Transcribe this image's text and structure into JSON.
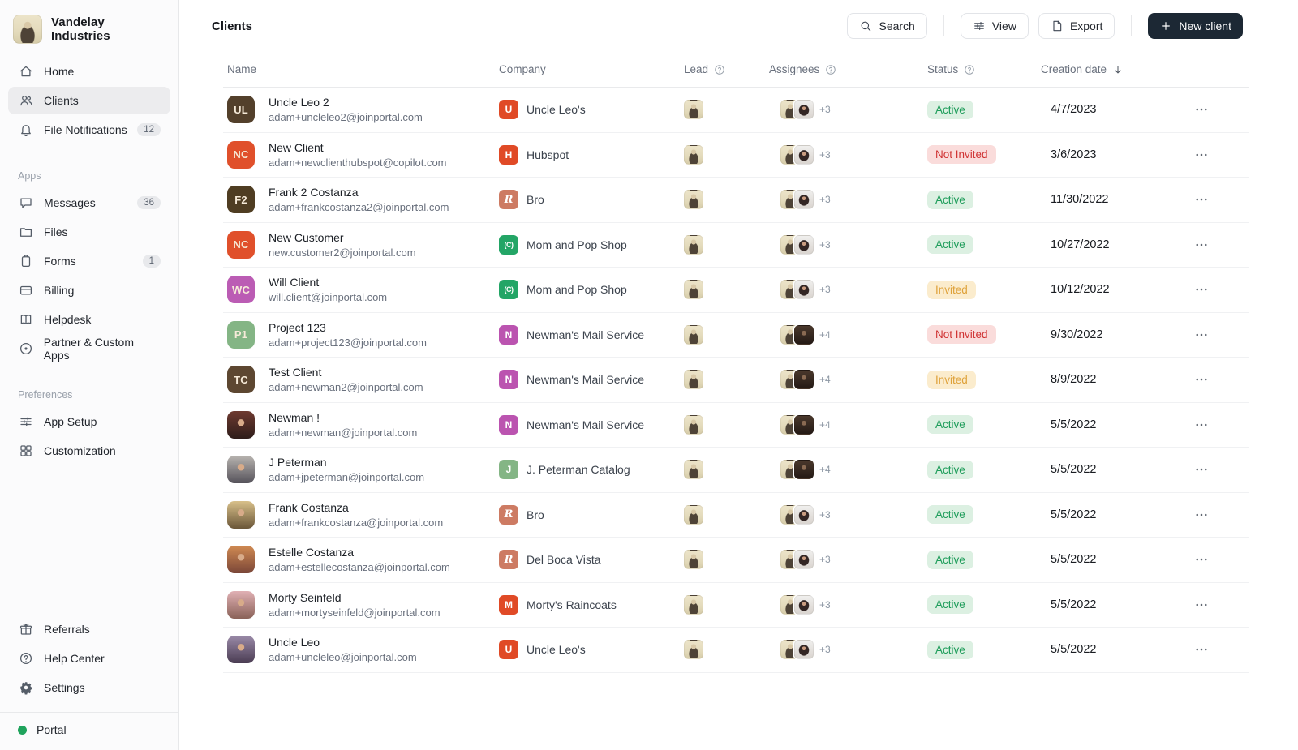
{
  "brand": {
    "name": "Vandelay Industries"
  },
  "sidebar": {
    "sections": [
      {
        "items": [
          {
            "id": "home",
            "icon": "home",
            "label": "Home"
          },
          {
            "id": "clients",
            "icon": "users",
            "label": "Clients",
            "active": true
          },
          {
            "id": "file-notifications",
            "icon": "bell",
            "label": "File Notifications",
            "badge": "12"
          }
        ]
      },
      {
        "label": "Apps",
        "items": [
          {
            "id": "messages",
            "icon": "chat",
            "label": "Messages",
            "badge": "36"
          },
          {
            "id": "files",
            "icon": "folder",
            "label": "Files"
          },
          {
            "id": "forms",
            "icon": "clipboard",
            "label": "Forms",
            "badge": "1"
          },
          {
            "id": "billing",
            "icon": "card",
            "label": "Billing"
          },
          {
            "id": "helpdesk",
            "icon": "book",
            "label": "Helpdesk"
          },
          {
            "id": "partner-custom-apps",
            "icon": "target",
            "label": "Partner & Custom Apps"
          }
        ]
      },
      {
        "label": "Preferences",
        "items": [
          {
            "id": "app-setup",
            "icon": "sliders",
            "label": "App Setup"
          },
          {
            "id": "customization",
            "icon": "grid",
            "label": "Customization"
          }
        ]
      }
    ],
    "footer_items": [
      {
        "id": "referrals",
        "icon": "gift",
        "label": "Referrals"
      },
      {
        "id": "help-center",
        "icon": "help",
        "label": "Help Center"
      },
      {
        "id": "settings",
        "icon": "gear",
        "label": "Settings"
      }
    ],
    "portal": {
      "label": "Portal",
      "dot_color": "#1fa35c"
    }
  },
  "topbar": {
    "title": "Clients",
    "buttons": {
      "search": "Search",
      "view": "View",
      "export": "Export",
      "new_client": "New client"
    }
  },
  "table": {
    "headers": {
      "name": "Name",
      "company": "Company",
      "lead": "Lead",
      "assignees": "Assignees",
      "status": "Status",
      "creation_date": "Creation date"
    },
    "sort": {
      "column": "creation_date",
      "direction": "desc"
    },
    "rows": [
      {
        "name": "Uncle Leo 2",
        "email": "adam+uncleleo2@joinportal.com",
        "avatar": {
          "type": "initials",
          "text": "UL",
          "bg": "#53402b"
        },
        "company": {
          "name": "Uncle Leo's",
          "icon_text": "U",
          "icon_bg": "#e04a26",
          "icon_style": "normal"
        },
        "assignees": {
          "second": "woman",
          "extra": "+3"
        },
        "status": "Active",
        "date": "4/7/2023"
      },
      {
        "name": "New Client",
        "email": "adam+newclienthubspot@copilot.com",
        "avatar": {
          "type": "initials",
          "text": "NC",
          "bg": "#e0502b"
        },
        "company": {
          "name": "Hubspot",
          "icon_text": "H",
          "icon_bg": "#e04a26",
          "icon_style": "normal"
        },
        "assignees": {
          "second": "woman",
          "extra": "+3"
        },
        "status": "Not Invited",
        "date": "3/6/2023"
      },
      {
        "name": "Frank 2 Costanza",
        "email": "adam+frankcostanza2@joinportal.com",
        "avatar": {
          "type": "initials",
          "text": "F2",
          "bg": "#4f3d22"
        },
        "company": {
          "name": "Bro",
          "icon_text": "R",
          "icon_bg": "#cd7b63",
          "icon_style": "script"
        },
        "assignees": {
          "second": "woman",
          "extra": "+3"
        },
        "status": "Active",
        "date": "11/30/2022"
      },
      {
        "name": "New Customer",
        "email": "new.customer2@joinportal.com",
        "avatar": {
          "type": "initials",
          "text": "NC",
          "bg": "#e0502b"
        },
        "company": {
          "name": "Mom and Pop Shop",
          "icon_text": "(C)",
          "icon_bg": "#23a566",
          "icon_style": "small"
        },
        "assignees": {
          "second": "woman",
          "extra": "+3"
        },
        "status": "Active",
        "date": "10/27/2022"
      },
      {
        "name": "Will Client",
        "email": "will.client@joinportal.com",
        "avatar": {
          "type": "initials",
          "text": "WC",
          "bg": "#bb5cb4"
        },
        "company": {
          "name": "Mom and Pop Shop",
          "icon_text": "(C)",
          "icon_bg": "#23a566",
          "icon_style": "small"
        },
        "assignees": {
          "second": "woman",
          "extra": "+3"
        },
        "status": "Invited",
        "date": "10/12/2022"
      },
      {
        "name": "Project 123",
        "email": "adam+project123@joinportal.com",
        "avatar": {
          "type": "initials",
          "text": "P1",
          "bg": "#84b585"
        },
        "company": {
          "name": "Newman's Mail Service",
          "icon_text": "N",
          "icon_bg": "#bb54b0",
          "icon_style": "normal"
        },
        "assignees": {
          "second": "man",
          "extra": "+4"
        },
        "status": "Not Invited",
        "date": "9/30/2022"
      },
      {
        "name": "Test Client",
        "email": "adam+newman2@joinportal.com",
        "avatar": {
          "type": "initials",
          "text": "TC",
          "bg": "#5d4731"
        },
        "company": {
          "name": "Newman's Mail Service",
          "icon_text": "N",
          "icon_bg": "#bb54b0",
          "icon_style": "normal"
        },
        "assignees": {
          "second": "man",
          "extra": "+4"
        },
        "status": "Invited",
        "date": "8/9/2022"
      },
      {
        "name": "Newman !",
        "email": "adam+newman@joinportal.com",
        "avatar": {
          "type": "photo",
          "colors": [
            "#6e3a30",
            "#2e1d1a"
          ]
        },
        "company": {
          "name": "Newman's Mail Service",
          "icon_text": "N",
          "icon_bg": "#bb54b0",
          "icon_style": "normal"
        },
        "assignees": {
          "second": "man",
          "extra": "+4"
        },
        "status": "Active",
        "date": "5/5/2022"
      },
      {
        "name": "J Peterman",
        "email": "adam+jpeterman@joinportal.com",
        "avatar": {
          "type": "photo",
          "colors": [
            "#b8b4b0",
            "#55525a"
          ]
        },
        "company": {
          "name": "J. Peterman Catalog",
          "icon_text": "J",
          "icon_bg": "#84b585",
          "icon_style": "normal"
        },
        "assignees": {
          "second": "man",
          "extra": "+4"
        },
        "status": "Active",
        "date": "5/5/2022"
      },
      {
        "name": "Frank Costanza",
        "email": "adam+frankcostanza@joinportal.com",
        "avatar": {
          "type": "photo",
          "colors": [
            "#d8c08a",
            "#6a5638"
          ]
        },
        "company": {
          "name": "Bro",
          "icon_text": "R",
          "icon_bg": "#cd7b63",
          "icon_style": "script"
        },
        "assignees": {
          "second": "woman",
          "extra": "+3"
        },
        "status": "Active",
        "date": "5/5/2022"
      },
      {
        "name": "Estelle Costanza",
        "email": "adam+estellecostanza@joinportal.com",
        "avatar": {
          "type": "photo",
          "colors": [
            "#d08a52",
            "#7a4638"
          ]
        },
        "company": {
          "name": "Del Boca Vista",
          "icon_text": "R",
          "icon_bg": "#cd7b63",
          "icon_style": "script"
        },
        "assignees": {
          "second": "woman",
          "extra": "+3"
        },
        "status": "Active",
        "date": "5/5/2022"
      },
      {
        "name": "Morty Seinfeld",
        "email": "adam+mortyseinfeld@joinportal.com",
        "avatar": {
          "type": "photo",
          "colors": [
            "#e0b0b4",
            "#8a6258"
          ]
        },
        "company": {
          "name": "Morty's Raincoats",
          "icon_text": "M",
          "icon_bg": "#e04a26",
          "icon_style": "normal"
        },
        "assignees": {
          "second": "woman",
          "extra": "+3"
        },
        "status": "Active",
        "date": "5/5/2022"
      },
      {
        "name": "Uncle Leo",
        "email": "adam+uncleleo@joinportal.com",
        "avatar": {
          "type": "photo",
          "colors": [
            "#9a8aa8",
            "#4a3c52"
          ]
        },
        "company": {
          "name": "Uncle Leo's",
          "icon_text": "U",
          "icon_bg": "#e04a26",
          "icon_style": "normal"
        },
        "assignees": {
          "second": "woman",
          "extra": "+3"
        },
        "status": "Active",
        "date": "5/5/2022"
      }
    ]
  },
  "colors": {
    "primary_button_bg": "#1c2834",
    "status": {
      "Active": {
        "bg": "#dcf0e2",
        "text": "#1f9d5b"
      },
      "Invited": {
        "bg": "#fbeccd",
        "text": "#dfa23a"
      },
      "Not Invited": {
        "bg": "#fadcdb",
        "text": "#d03434"
      }
    }
  }
}
